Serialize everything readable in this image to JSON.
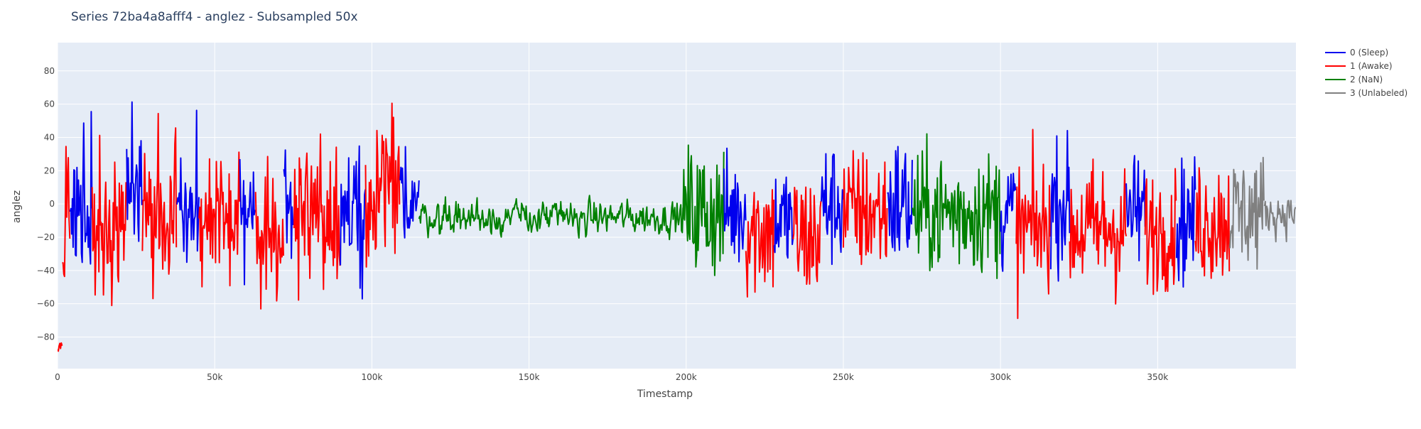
{
  "chart_data": {
    "type": "line",
    "title": "Series 72ba4a8afff4 - anglez - Subsampled 50x",
    "xlabel": "Timestamp",
    "ylabel": "anglez",
    "xlim": [
      0,
      394000
    ],
    "ylim": [
      -99,
      97
    ],
    "x_ticks": [
      {
        "value": 0,
        "label": "0"
      },
      {
        "value": 50000,
        "label": "50k"
      },
      {
        "value": 100000,
        "label": "100k"
      },
      {
        "value": 150000,
        "label": "150k"
      },
      {
        "value": 200000,
        "label": "200k"
      },
      {
        "value": 250000,
        "label": "250k"
      },
      {
        "value": 300000,
        "label": "300k"
      },
      {
        "value": 350000,
        "label": "350k"
      }
    ],
    "y_ticks": [
      {
        "value": 80,
        "label": "80"
      },
      {
        "value": 60,
        "label": "60"
      },
      {
        "value": 40,
        "label": "40"
      },
      {
        "value": 20,
        "label": "20"
      },
      {
        "value": 0,
        "label": "0"
      },
      {
        "value": -20,
        "label": "−20"
      },
      {
        "value": -40,
        "label": "−40"
      },
      {
        "value": -60,
        "label": "−60"
      },
      {
        "value": -80,
        "label": "−80"
      }
    ],
    "grid": true,
    "legend_position": "top-right",
    "colors": {
      "plot_bg": "#E5ECF6",
      "grid": "#ffffff",
      "text": "#444444",
      "title": "#2a3f5f"
    },
    "series": [
      {
        "name": "0 (Sleep)",
        "color": "#0000EE",
        "width": 2
      },
      {
        "name": "1 (Awake)",
        "color": "#FF0000",
        "width": 2
      },
      {
        "name": "2 (NaN)",
        "color": "#008000",
        "width": 2
      },
      {
        "name": "3 (Unlabeled)",
        "color": "#808080",
        "width": 2
      }
    ],
    "segments": [
      {
        "label": 1,
        "x_start": 0,
        "x_end": 1500,
        "amp": 6,
        "center": -86
      },
      {
        "label": 1,
        "x_start": 1500,
        "x_end": 4000,
        "amp": 45,
        "center": 0
      },
      {
        "label": 0,
        "x_start": 4000,
        "x_end": 11000,
        "amp": 45,
        "center": 0
      },
      {
        "label": 1,
        "x_start": 11000,
        "x_end": 22000,
        "amp": 48,
        "center": -8
      },
      {
        "label": 0,
        "x_start": 22000,
        "x_end": 27000,
        "amp": 45,
        "center": 0
      },
      {
        "label": 1,
        "x_start": 27000,
        "x_end": 38000,
        "amp": 48,
        "center": -10
      },
      {
        "label": 0,
        "x_start": 38000,
        "x_end": 45000,
        "amp": 45,
        "center": 0
      },
      {
        "label": 1,
        "x_start": 45000,
        "x_end": 58000,
        "amp": 42,
        "center": -12
      },
      {
        "label": 0,
        "x_start": 58000,
        "x_end": 63000,
        "amp": 38,
        "center": -5
      },
      {
        "label": 1,
        "x_start": 63000,
        "x_end": 72000,
        "amp": 45,
        "center": -15
      },
      {
        "label": 0,
        "x_start": 72000,
        "x_end": 75000,
        "amp": 40,
        "center": 0
      },
      {
        "label": 1,
        "x_start": 75000,
        "x_end": 90000,
        "amp": 48,
        "center": -5
      },
      {
        "label": 0,
        "x_start": 90000,
        "x_end": 98000,
        "amp": 40,
        "center": -5
      },
      {
        "label": 1,
        "x_start": 98000,
        "x_end": 109000,
        "amp": 48,
        "center": 5
      },
      {
        "label": 0,
        "x_start": 109000,
        "x_end": 115000,
        "amp": 32,
        "center": 5
      },
      {
        "label": 2,
        "x_start": 115000,
        "x_end": 199000,
        "amp": 11,
        "center": -8
      },
      {
        "label": 2,
        "x_start": 199000,
        "x_end": 212000,
        "amp": 45,
        "center": -5
      },
      {
        "label": 0,
        "x_start": 212000,
        "x_end": 219000,
        "amp": 38,
        "center": -5
      },
      {
        "label": 1,
        "x_start": 219000,
        "x_end": 228000,
        "amp": 45,
        "center": -15
      },
      {
        "label": 0,
        "x_start": 228000,
        "x_end": 234000,
        "amp": 38,
        "center": -10
      },
      {
        "label": 1,
        "x_start": 234000,
        "x_end": 243000,
        "amp": 45,
        "center": -20
      },
      {
        "label": 0,
        "x_start": 243000,
        "x_end": 250000,
        "amp": 40,
        "center": 0
      },
      {
        "label": 1,
        "x_start": 250000,
        "x_end": 264000,
        "amp": 42,
        "center": -5
      },
      {
        "label": 0,
        "x_start": 264000,
        "x_end": 272000,
        "amp": 45,
        "center": 0
      },
      {
        "label": 2,
        "x_start": 272000,
        "x_end": 300000,
        "amp": 40,
        "center": -5
      },
      {
        "label": 0,
        "x_start": 300000,
        "x_end": 305000,
        "amp": 40,
        "center": -5
      },
      {
        "label": 1,
        "x_start": 305000,
        "x_end": 316000,
        "amp": 45,
        "center": -15
      },
      {
        "label": 0,
        "x_start": 316000,
        "x_end": 322000,
        "amp": 40,
        "center": 0
      },
      {
        "label": 1,
        "x_start": 322000,
        "x_end": 340000,
        "amp": 45,
        "center": -15
      },
      {
        "label": 0,
        "x_start": 340000,
        "x_end": 346000,
        "amp": 38,
        "center": -5
      },
      {
        "label": 1,
        "x_start": 346000,
        "x_end": 356000,
        "amp": 40,
        "center": -15
      },
      {
        "label": 0,
        "x_start": 356000,
        "x_end": 362000,
        "amp": 40,
        "center": -10
      },
      {
        "label": 1,
        "x_start": 362000,
        "x_end": 373000,
        "amp": 42,
        "center": -10
      },
      {
        "label": 3,
        "x_start": 373000,
        "x_end": 384000,
        "amp": 38,
        "center": -5
      },
      {
        "label": 3,
        "x_start": 384000,
        "x_end": 394000,
        "amp": 14,
        "center": -5
      }
    ]
  }
}
